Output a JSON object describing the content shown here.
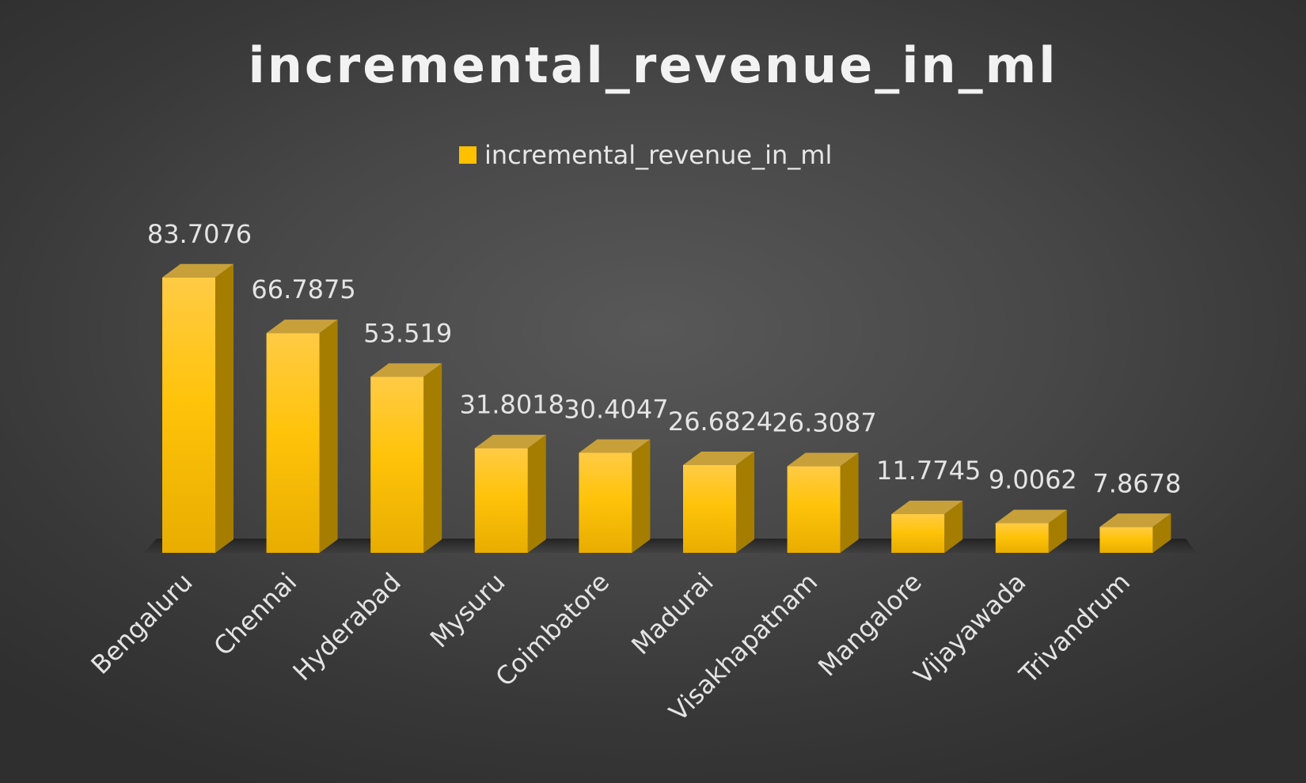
{
  "chart_data": {
    "type": "bar",
    "title": "incremental_revenue_in_ml",
    "legend_position": "top",
    "series": [
      {
        "name": "incremental_revenue_in_ml",
        "color": "#FFC000",
        "values": [
          83.7076,
          66.7875,
          53.519,
          31.8018,
          30.4047,
          26.6824,
          26.3087,
          11.7745,
          9.0062,
          7.8678
        ],
        "labels": [
          "83.7076",
          "66.7875",
          "53.519",
          "31.8018",
          "30.4047",
          "26.6824",
          "26.3087",
          "11.7745",
          "9.0062",
          "7.8678"
        ]
      }
    ],
    "categories": [
      "Bengaluru",
      "Chennai",
      "Hyderabad",
      "Mysuru",
      "Coimbatore",
      "Madurai",
      "Visakhapatnam",
      "Mangalore",
      "Vijayawada",
      "Trivandrum"
    ],
    "ylim": [
      0,
      90
    ],
    "grid": false,
    "style": "3d-column"
  }
}
